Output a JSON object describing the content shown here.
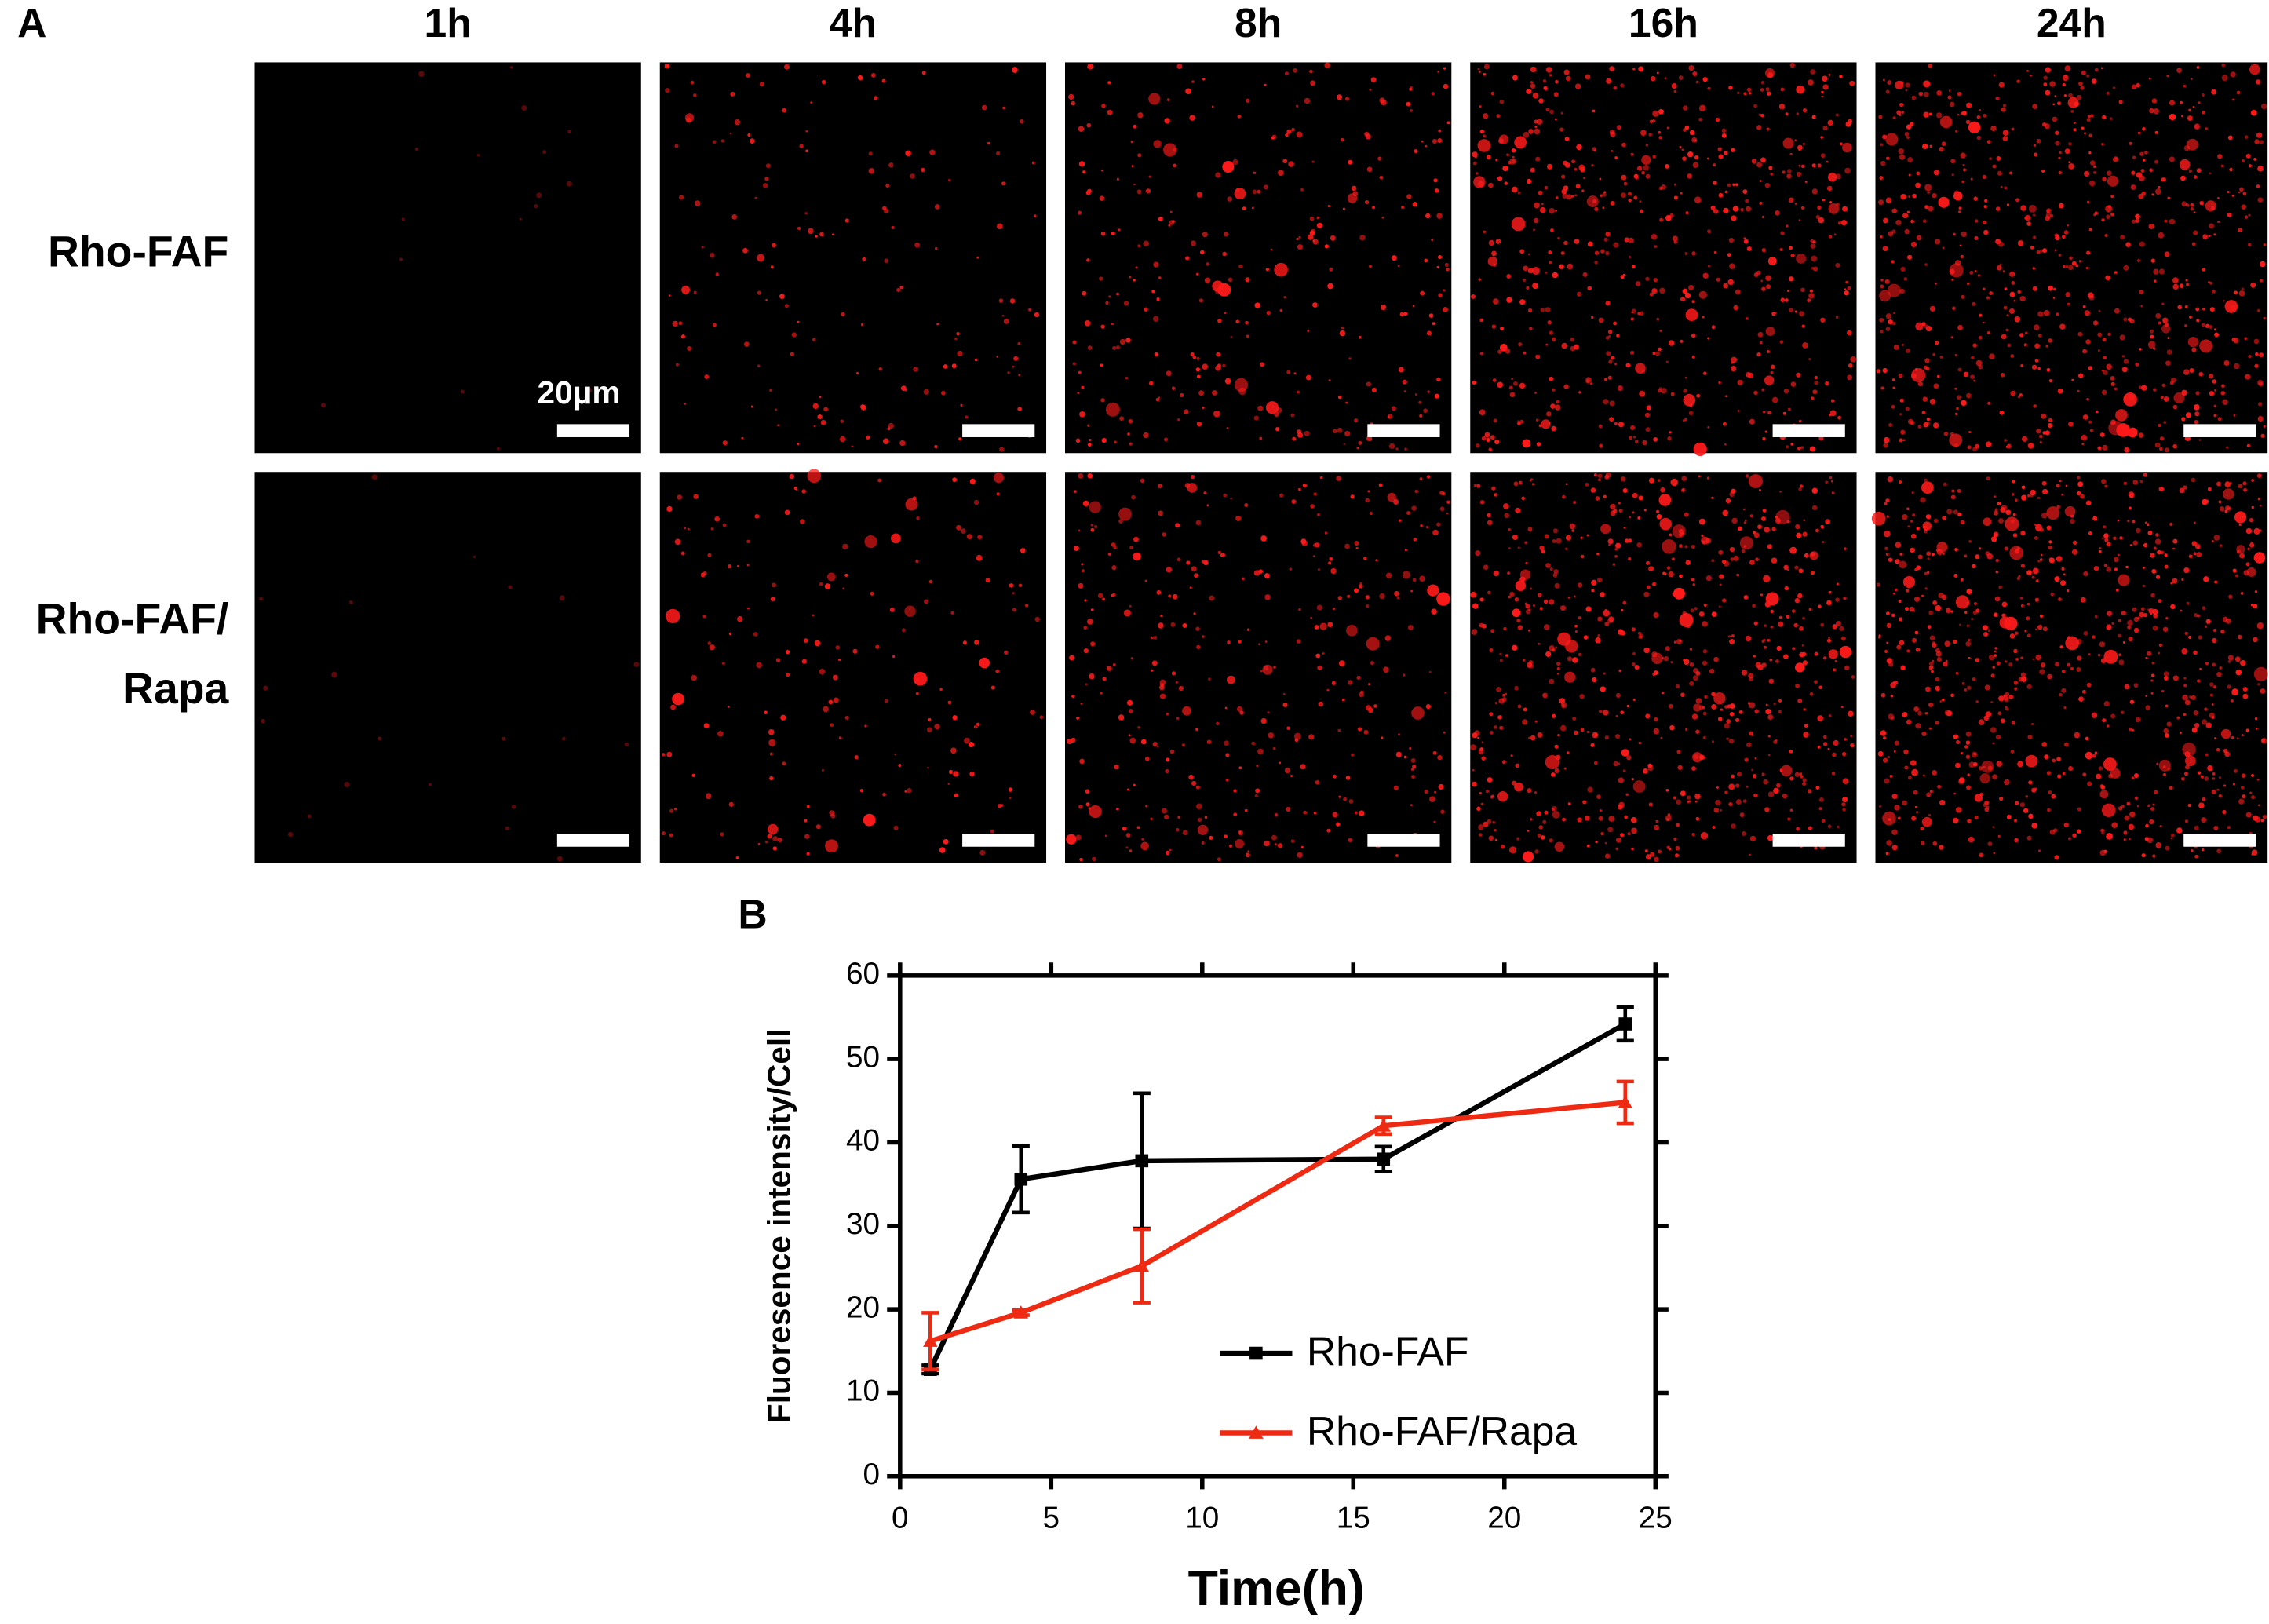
{
  "panel_a": {
    "label": "A",
    "columns": [
      "1h",
      "4h",
      "8h",
      "16h",
      "24h"
    ],
    "rows": [
      [
        "Rho-FAF"
      ],
      [
        "Rho-FAF/",
        "Rapa"
      ]
    ],
    "scale_bar": "20μm"
  },
  "chart_data": {
    "type": "line",
    "panel_label": "B",
    "x_label": "Time(h)",
    "y_label": "Fluoresence intensity/Cell",
    "x": [
      1,
      4,
      8,
      16,
      24
    ],
    "series": [
      {
        "name": "Rho-FAF",
        "color": "#000000",
        "marker": "square",
        "values": [
          12.8,
          35.6,
          37.8,
          38,
          54.2
        ],
        "errors": [
          0.5,
          4,
          8.1,
          1.5,
          2
        ]
      },
      {
        "name": "Rho-FAF/Rapa",
        "color": "#ee2a13",
        "marker": "triangle",
        "values": [
          16.2,
          19.6,
          25.2,
          42,
          44.8
        ],
        "errors": [
          3.4,
          0.3,
          4.4,
          1,
          2.5
        ]
      }
    ],
    "xlim": [
      0,
      25
    ],
    "xticks": [
      0,
      5,
      10,
      15,
      20,
      25
    ],
    "ylim": [
      0,
      60
    ],
    "yticks": [
      0,
      10,
      20,
      30,
      40,
      50,
      60
    ]
  }
}
